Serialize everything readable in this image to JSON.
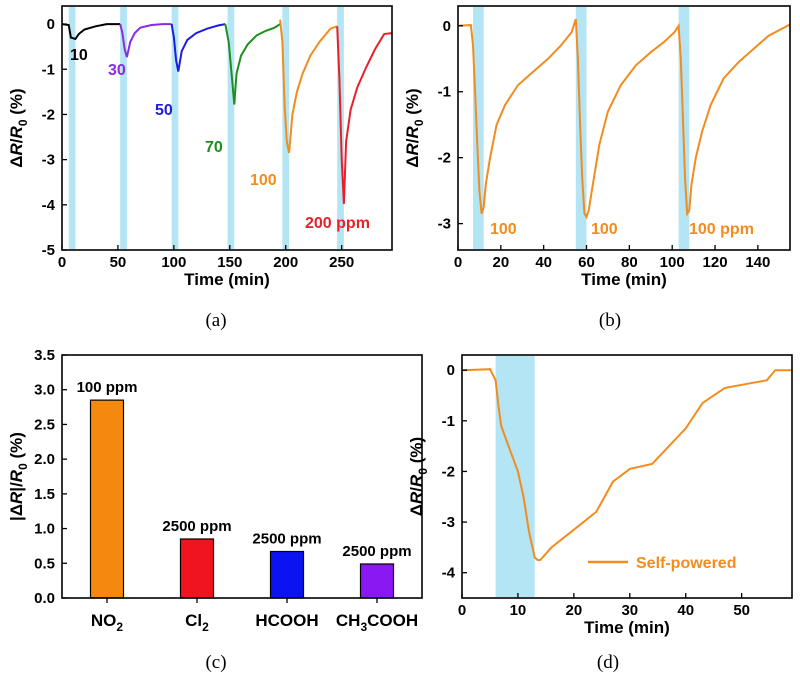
{
  "panel_labels": [
    "(a)",
    "(b)",
    "(c)",
    "(d)"
  ],
  "chart_data": [
    {
      "id": "a",
      "type": "line",
      "xlabel": "Time (min)",
      "ylabel": "ΔR/R0 (%)",
      "xlim": [
        0,
        295
      ],
      "ylim": [
        -5,
        0.4
      ],
      "xticks": [
        0,
        50,
        100,
        150,
        200,
        250
      ],
      "yticks": [
        0,
        -1,
        -2,
        -3,
        -4,
        -5
      ],
      "shaded_intervals": [
        [
          6,
          12
        ],
        [
          52,
          58
        ],
        [
          98,
          104
        ],
        [
          148,
          154
        ],
        [
          197,
          203
        ],
        [
          246,
          252
        ]
      ],
      "series": [
        {
          "name": "10",
          "label": "10",
          "color": "#000000",
          "x": [
            0,
            6,
            8,
            12,
            15,
            20,
            30,
            40,
            52
          ],
          "y": [
            0,
            -0.02,
            -0.3,
            -0.33,
            -0.22,
            -0.12,
            -0.05,
            0,
            0
          ]
        },
        {
          "name": "30",
          "label": "30",
          "color": "#8a2be2",
          "x": [
            52,
            54,
            56,
            58,
            61,
            65,
            70,
            80,
            90,
            98
          ],
          "y": [
            0,
            -0.2,
            -0.55,
            -0.73,
            -0.4,
            -0.2,
            -0.08,
            -0.02,
            0,
            0
          ]
        },
        {
          "name": "50",
          "label": "50",
          "color": "#1d1de0",
          "x": [
            98,
            100,
            102,
            104,
            107,
            112,
            120,
            130,
            140,
            146
          ],
          "y": [
            0,
            -0.3,
            -0.8,
            -1.05,
            -0.6,
            -0.35,
            -0.2,
            -0.1,
            -0.03,
            0
          ]
        },
        {
          "name": "70",
          "label": "70",
          "color": "#1e8f1e",
          "x": [
            146,
            149,
            152,
            154,
            156,
            160,
            166,
            174,
            182,
            190,
            195
          ],
          "y": [
            0,
            -0.4,
            -1.2,
            -1.78,
            -1.1,
            -0.7,
            -0.45,
            -0.25,
            -0.15,
            -0.08,
            0
          ]
        },
        {
          "name": "100",
          "label": "100",
          "color": "#f28c1e",
          "x": [
            195,
            197,
            199,
            201,
            203,
            206,
            210,
            215,
            222,
            230,
            240,
            246
          ],
          "y": [
            0.1,
            -0.4,
            -1.8,
            -2.6,
            -2.85,
            -2.0,
            -1.5,
            -1.1,
            -0.7,
            -0.4,
            -0.1,
            -0.05
          ]
        },
        {
          "name": "200",
          "label": "200 ppm",
          "color": "#e8202a",
          "x": [
            246,
            248,
            250,
            252,
            254,
            258,
            264,
            272,
            280,
            288,
            295
          ],
          "y": [
            -0.05,
            -1.2,
            -3.0,
            -3.98,
            -2.6,
            -1.9,
            -1.4,
            -0.95,
            -0.55,
            -0.22,
            -0.2
          ]
        }
      ]
    },
    {
      "id": "b",
      "type": "line",
      "xlabel": "Time (min)",
      "ylabel": "ΔR/R0 (%)",
      "xlim": [
        0,
        155
      ],
      "ylim": [
        -3.4,
        0.3
      ],
      "xticks": [
        0,
        20,
        40,
        60,
        80,
        100,
        120,
        140
      ],
      "yticks": [
        0,
        -1,
        -2,
        -3
      ],
      "shaded_intervals": [
        [
          7,
          12
        ],
        [
          55,
          60
        ],
        [
          103,
          108
        ]
      ],
      "annotations": [
        "100",
        "100",
        "100 ppm"
      ],
      "color": "#f28c1e",
      "x": [
        0,
        6,
        7,
        8,
        9,
        10,
        11,
        12,
        13,
        15,
        18,
        22,
        28,
        35,
        42,
        48,
        53,
        55,
        56,
        57,
        58,
        59,
        60,
        61,
        63,
        66,
        70,
        76,
        83,
        90,
        96,
        101,
        103,
        104,
        105,
        106,
        107,
        108,
        109,
        111,
        114,
        118,
        124,
        131,
        138,
        145,
        155
      ],
      "y": [
        0,
        0.01,
        -0.3,
        -1.0,
        -1.8,
        -2.5,
        -2.85,
        -2.75,
        -2.4,
        -2.0,
        -1.5,
        -1.2,
        -0.9,
        -0.7,
        -0.5,
        -0.3,
        -0.1,
        0.1,
        -0.5,
        -1.5,
        -2.3,
        -2.85,
        -2.9,
        -2.8,
        -2.4,
        -1.8,
        -1.3,
        -0.9,
        -0.6,
        -0.4,
        -0.25,
        -0.1,
        0.0,
        -0.5,
        -1.4,
        -2.3,
        -2.85,
        -2.8,
        -2.4,
        -2.0,
        -1.6,
        -1.2,
        -0.8,
        -0.55,
        -0.35,
        -0.15,
        0.02
      ]
    },
    {
      "id": "c",
      "type": "bar",
      "xlabel": "",
      "ylabel": "|ΔR|/R0 (%)",
      "ylim": [
        0,
        3.5
      ],
      "yticks": [
        0.0,
        0.5,
        1.0,
        1.5,
        2.0,
        2.5,
        3.0,
        3.5
      ],
      "ytick_labels": [
        "0.0",
        "0.5",
        "1.0",
        "1.5",
        "2.0",
        "2.5",
        "3.0",
        "3.5"
      ],
      "categories": [
        "NO2",
        "Cl2",
        "HCOOH",
        "CH3COOH"
      ],
      "values": [
        2.85,
        0.85,
        0.67,
        0.49
      ],
      "colors": [
        "#f5890f",
        "#f0141e",
        "#0a14f0",
        "#8a18f2"
      ],
      "bar_labels": [
        "100 ppm",
        "2500 ppm",
        "2500 ppm",
        "2500 ppm"
      ]
    },
    {
      "id": "d",
      "type": "line",
      "xlabel": "Time (min)",
      "ylabel": "ΔR/R0 (%)",
      "xlim": [
        0,
        59
      ],
      "ylim": [
        -4.5,
        0.3
      ],
      "xticks": [
        0,
        10,
        20,
        30,
        40,
        50
      ],
      "yticks": [
        0,
        -1,
        -2,
        -3,
        -4
      ],
      "shaded_intervals": [
        [
          6,
          13
        ]
      ],
      "legend": "Self-powered",
      "legend_position": "lower-right",
      "color": "#f28c1e",
      "x": [
        0,
        5,
        6,
        6.5,
        7,
        8,
        9,
        10,
        11,
        12,
        13,
        13.5,
        14,
        16,
        20,
        24,
        27,
        30,
        34,
        40,
        43,
        47,
        52,
        54.5,
        56,
        57,
        59
      ],
      "y": [
        0,
        0.02,
        -0.2,
        -0.7,
        -1.1,
        -1.4,
        -1.7,
        -2.0,
        -2.5,
        -3.2,
        -3.7,
        -3.75,
        -3.75,
        -3.5,
        -3.15,
        -2.8,
        -2.2,
        -1.95,
        -1.85,
        -1.15,
        -0.65,
        -0.35,
        -0.25,
        -0.2,
        0.0,
        0.0,
        0.0
      ]
    }
  ]
}
